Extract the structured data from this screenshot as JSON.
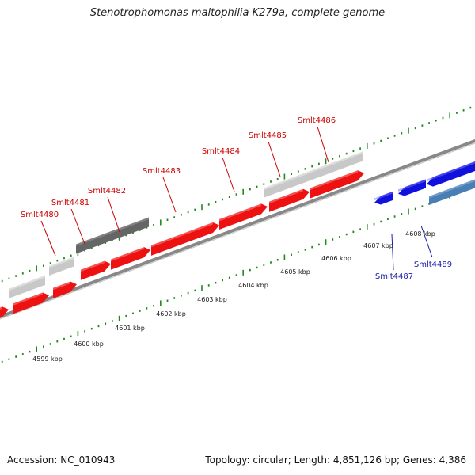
{
  "title": "Stenotrophomonas maltophilia K279a, complete genome",
  "footer": {
    "accession": "Accession: NC_010943",
    "summary": "Topology: circular; Length: 4,851,126 bp; Genes: 4,386"
  },
  "scale_labels": [
    "4599 kbp",
    "4600 kbp",
    "4601 kbp",
    "4602 kbp",
    "4603 kbp",
    "4604 kbp",
    "4605 kbp",
    "4606 kbp",
    "4607 kbp",
    "4608 kbp"
  ],
  "gene_labels": [
    {
      "name": "Smlt4480",
      "strand": "forward"
    },
    {
      "name": "Smlt4481",
      "strand": "forward"
    },
    {
      "name": "Smlt4482",
      "strand": "forward"
    },
    {
      "name": "Smlt4483",
      "strand": "forward"
    },
    {
      "name": "Smlt4484",
      "strand": "forward"
    },
    {
      "name": "Smlt4485",
      "strand": "forward"
    },
    {
      "name": "Smlt4486",
      "strand": "forward"
    },
    {
      "name": "Smlt4487",
      "strand": "reverse"
    },
    {
      "name": "Smlt4489",
      "strand": "reverse"
    }
  ],
  "colors": {
    "forward_gene": "#ee1111",
    "reverse_gene": "#1111dd",
    "reverse_gene_light": "#4a7fb5",
    "feature_light": "#c8c8c8",
    "feature_dark": "#666666",
    "backbone": "#888888",
    "tick": "#22881f",
    "forward_label": "#cc0000",
    "reverse_label": "#1a1aaa"
  },
  "icons": []
}
